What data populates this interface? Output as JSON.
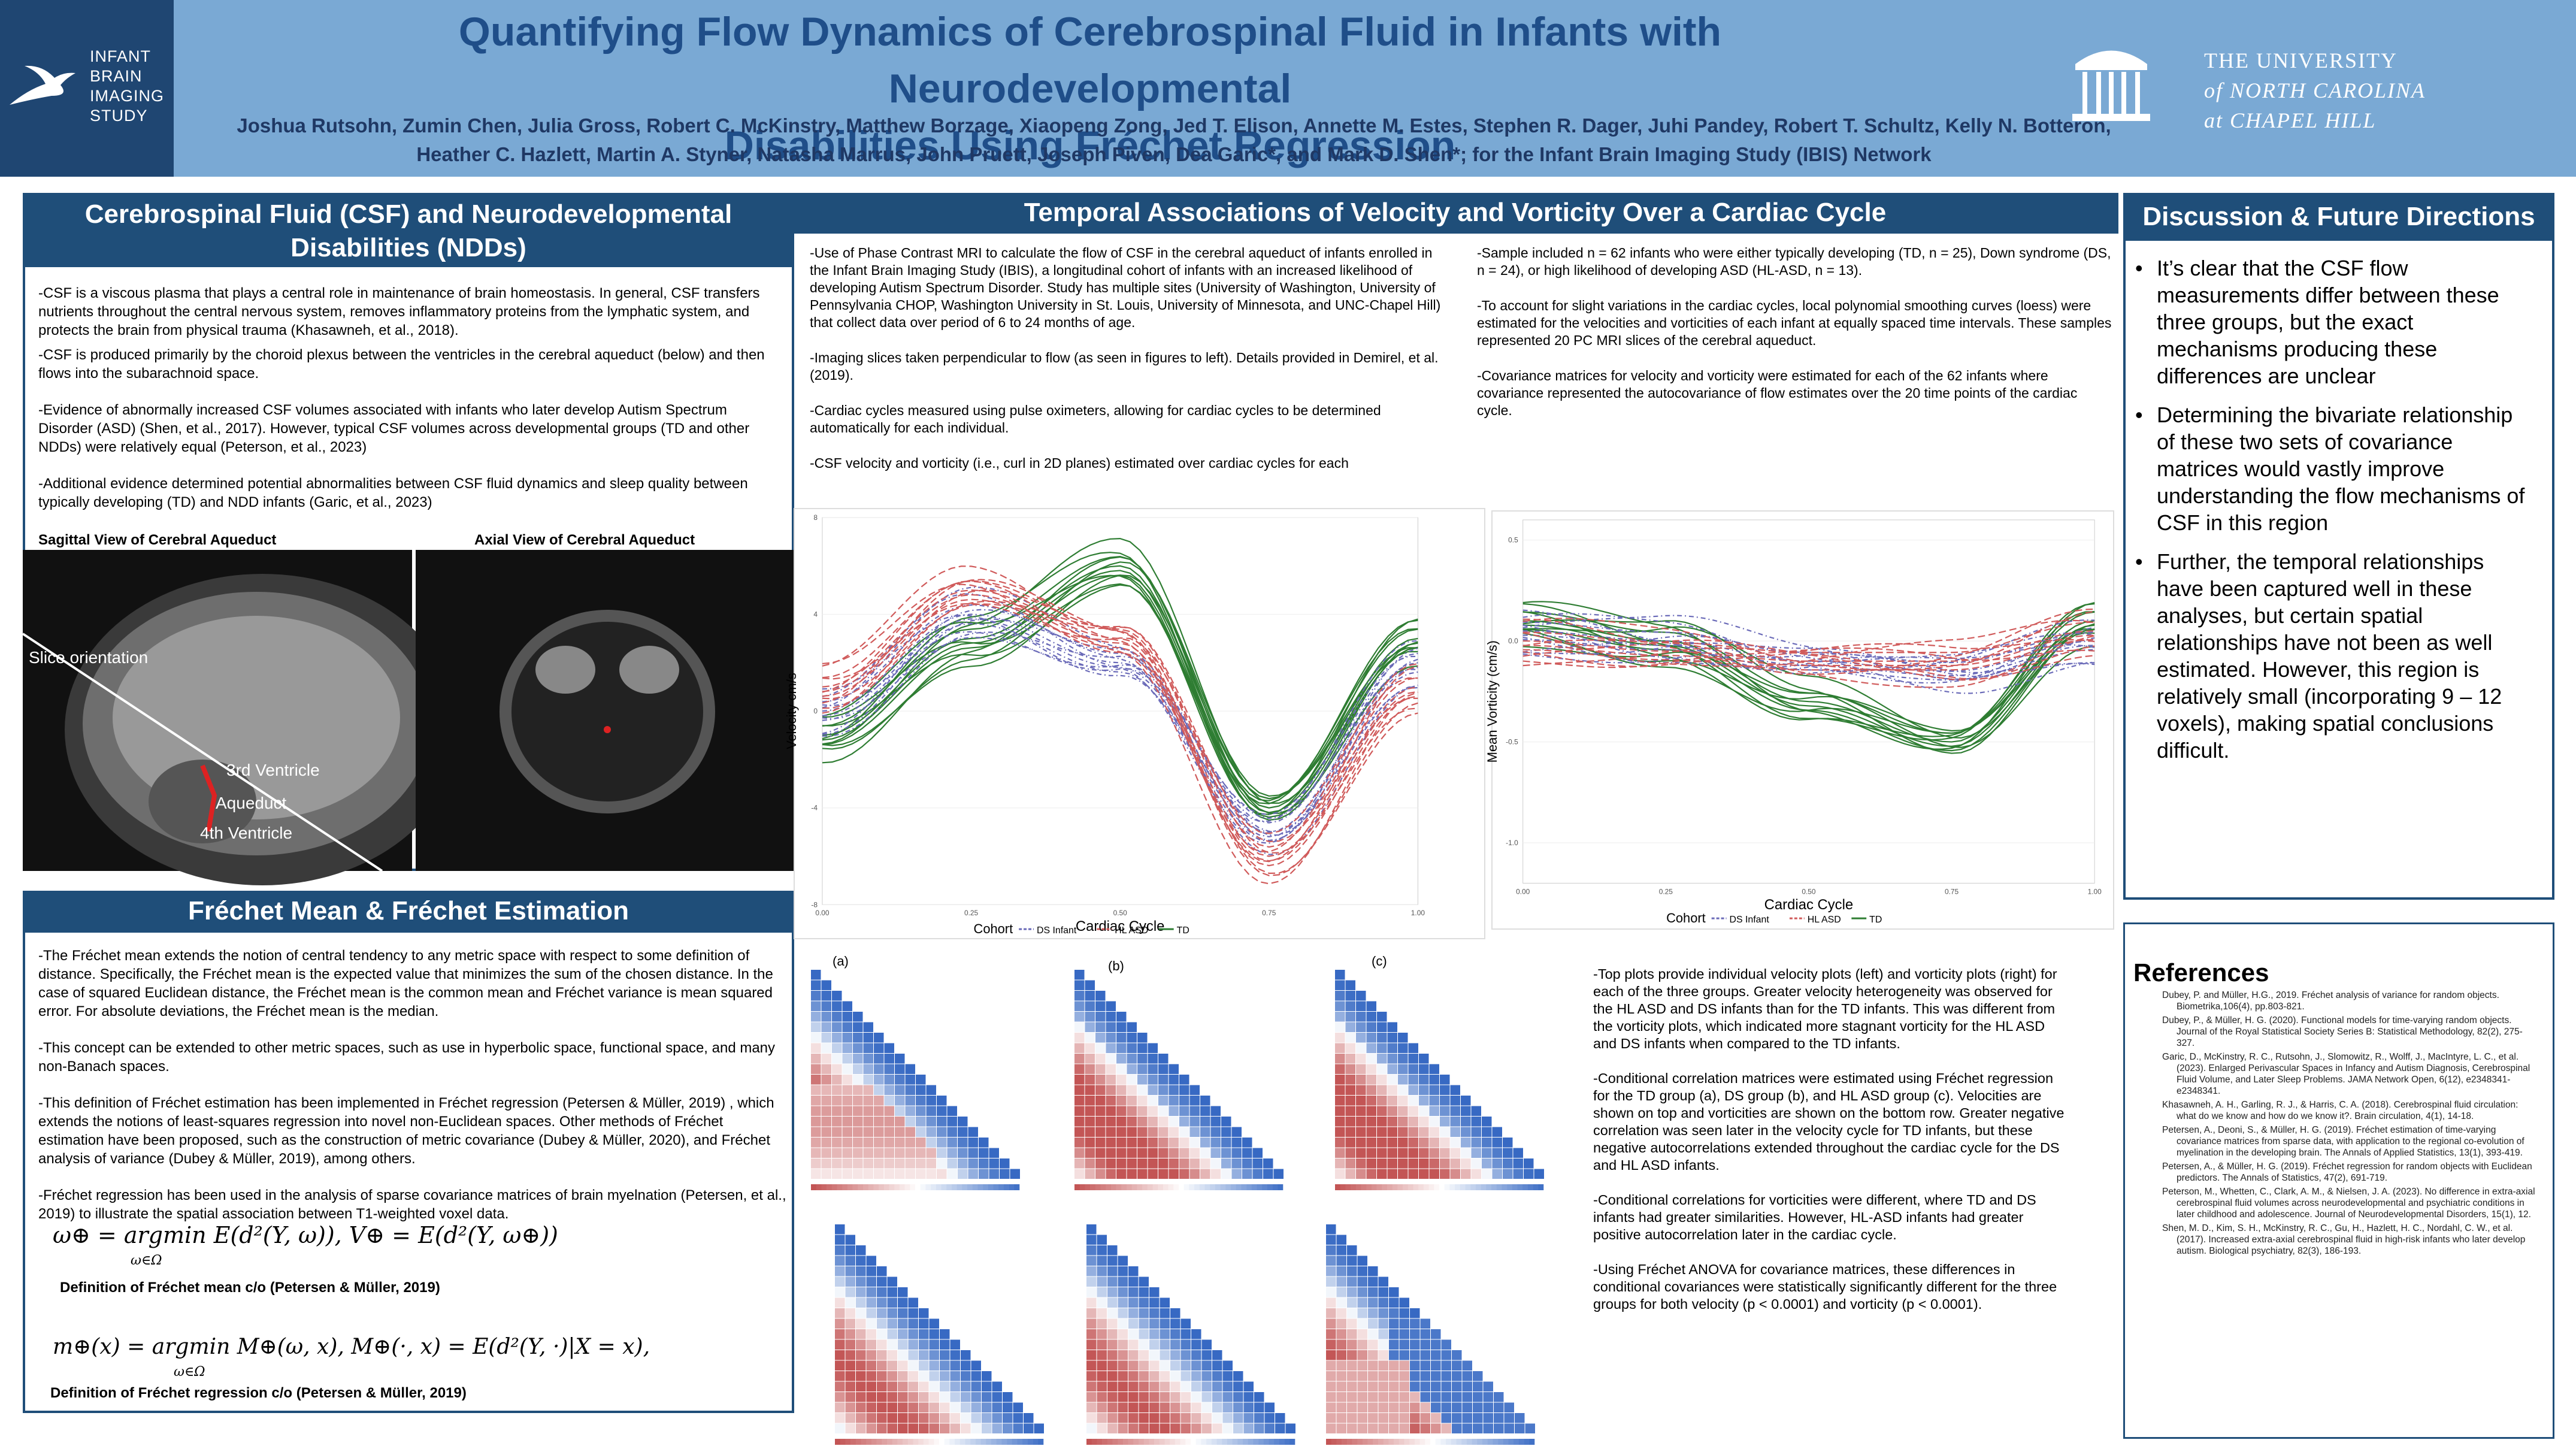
{
  "header": {
    "logo_text": [
      "INFANT",
      "BRAIN",
      "IMAGING",
      "STUDY"
    ],
    "title_line1": "Quantifying Flow Dynamics of Cerebrospinal Fluid in Infants with Neurodevelopmental",
    "title_line2": "Disabilities Using Fréchet Regression",
    "authors_line1": "Joshua Rutsohn, Zumin Chen, Julia Gross, Robert C. McKinstry, Matthew Borzage, Xiaopeng Zong, Jed T. Elison, Annette M. Estes, Stephen R. Dager, Juhi Pandey, Robert T. Schultz, Kelly N. Botteron,",
    "authors_line2": "Heather C. Hazlett, Martin A. Styner, Natasha Marrus, John Pruett, Joseph Piven, Dea Garic*, and Mark D. Shen*; for the Infant Brain Imaging Study (IBIS) Network",
    "unc_line1": "THE UNIVERSITY",
    "unc_line2": "of NORTH CAROLINA",
    "unc_line3": "at CHAPEL HILL"
  },
  "csf": {
    "heading": "Cerebrospinal Fluid (CSF) and Neurodevelopmental Disabilities (NDDs)",
    "p1": "-CSF is a viscous plasma that plays a central role in maintenance of brain homeostasis. In general, CSF transfers nutrients throughout the central nervous system, removes inflammatory proteins from the lymphatic system, and protects the brain from physical trauma (Khasawneh, et al., 2018).",
    "p2": "-CSF is produced primarily by the choroid plexus between the ventricles in the cerebral aqueduct (below) and then flows into the subarachnoid space.",
    "p3": "-Evidence of abnormally increased CSF volumes associated with infants who later develop Autism Spectrum Disorder (ASD) (Shen, et al., 2017). However, typical CSF volumes across developmental groups (TD and other NDDs) were relatively equal (Peterson, et al., 2023)",
    "p4": "-Additional evidence determined potential abnormalities between CSF fluid dynamics and sleep quality between typically developing (TD) and NDD infants (Garic, et al., 2023)",
    "img1_title": "Sagittal View of Cerebral Aqueduct",
    "img2_title": "Axial View of Cerebral Aqueduct",
    "slice_label": "Slice orientation",
    "ventricle3": "3rd Ventricle",
    "aqueduct": "Aqueduct",
    "ventricle4": "4th Ventricle"
  },
  "frechet": {
    "heading": "Fréchet Mean & Fréchet Estimation",
    "p1": "-The Fréchet mean extends the notion of central tendency to any metric space with respect to some definition of distance. Specifically, the Fréchet mean is the expected value that minimizes the sum of the chosen distance. In the case of squared Euclidean distance, the Fréchet mean is the common mean and Fréchet variance is mean squared error. For absolute deviations, the Fréchet mean is the median.",
    "p2": "-This concept can be extended to other metric spaces, such as use in hyperbolic space, functional space, and many non-Banach spaces.",
    "p3": "-This definition of Fréchet estimation has been implemented in Fréchet regression (Petersen & Müller, 2019) , which extends the notions of least-squares regression into novel non-Euclidean spaces. Other methods of Fréchet estimation have been proposed, such as the construction of metric covariance (Dubey & Müller, 2020), and Fréchet analysis of variance (Dubey & Müller, 2019), among others.",
    "p4": "-Fréchet regression has been used in the analysis of sparse covariance matrices of brain myelnation (Petersen, et al., 2019) to illustrate the spatial association between T1-weighted voxel data.",
    "eq1": "ω⊕ = argmin E(d²(Y, ω)),    V⊕ = E(d²(Y, ω⊕))",
    "eq1_sub": "ω∈Ω",
    "cap1": "Definition of Fréchet mean c/o (Petersen & Müller, 2019)",
    "eq2": "m⊕(x) = argmin M⊕(ω, x),    M⊕(·, x) = E(d²(Y, ·)|X = x),",
    "eq2_sub": "ω∈Ω",
    "cap2": "Definition of Fréchet regression c/o (Petersen & Müller, 2019)"
  },
  "temporal": {
    "heading": "Temporal Associations of Velocity and Vorticity Over a Cardiac Cycle",
    "c1p1": "-Use of Phase Contrast MRI to calculate the flow of CSF in the cerebral aqueduct of infants enrolled in the Infant Brain Imaging Study (IBIS), a longitudinal cohort of infants with an increased likelihood of developing Autism Spectrum Disorder. Study has multiple sites (University of Washington, University of Pennsylvania CHOP, Washington University in St. Louis, University of Minnesota, and UNC-Chapel Hill) that collect data over period of 6 to 24 months of age.",
    "c1p2": "-Imaging slices taken perpendicular to flow (as seen in figures to left). Details provided in Demirel, et al. (2019).",
    "c1p3": "-Cardiac cycles measured using pulse oximeters, allowing for cardiac cycles to be determined automatically for each individual.",
    "c1p4": "-CSF velocity and vorticity (i.e., curl in 2D planes) estimated over cardiac cycles for each",
    "c2p1": "-Sample included n = 62 infants who were either typically developing (TD, n = 25), Down syndrome (DS, n = 24), or high likelihood of developing ASD (HL-ASD, n = 13).",
    "c2p2": "-To account for slight variations in the cardiac cycles, local polynomial smoothing curves (loess) were estimated for the velocities and vorticities of each infant at equally spaced time intervals. These samples represented 20 PC MRI slices of the cerebral aqueduct.",
    "c2p3": "-Covariance matrices for velocity and vorticity were estimated for each of the 62 infants where covariance represented the autocovariance of flow estimates over the 20 time points of the cardiac cycle.",
    "cohort_label": "Cohort",
    "legend_ds": "DS Infant",
    "legend_hl": "HL ASD",
    "legend_td": "TD",
    "panel_a": "(a)",
    "panel_b": "(b)",
    "panel_c": "(c)",
    "r1": "-Top plots provide individual velocity plots (left) and vorticity plots (right) for each of the three groups. Greater velocity heterogeneity was observed for the HL ASD and DS infants than for the TD infants. This was different from the vorticity plots, which indicated more stagnant vorticity for the HL ASD and DS infants when compared to the TD infants.",
    "r2": "-Conditional correlation matrices were estimated using Fréchet regression for the TD group (a), DS group (b), and HL ASD group (c). Velocities are shown on top and vorticities are shown on the bottom row. Greater negative correlation was seen later in the velocity cycle for TD infants, but these negative autocorrelations extended throughout the cardiac cycle for the DS and HL ASD infants.",
    "r3": "-Conditional correlations for vorticities were different, where TD and DS infants had greater similarities. However, HL-ASD infants had greater positive autocorrelation later in the cardiac cycle.",
    "r4": "-Using Fréchet ANOVA for covariance matrices, these differences in conditional covariances were statistically significantly different for the three groups for both velocity (p < 0.0001) and vorticity (p < 0.0001)."
  },
  "chart_data": [
    {
      "type": "line",
      "title": "",
      "xlabel": "Cardiac Cycle",
      "ylabel": "Velocity cm/s",
      "xlim": [
        0,
        1
      ],
      "ylim": [
        -8,
        8
      ],
      "xticks": [
        "0.00",
        "0.25",
        "0.50",
        "0.75",
        "1.00"
      ],
      "yticks": [
        "-8",
        "-4",
        "0",
        "4",
        "8"
      ],
      "legend": [
        "DS Infant",
        "HL ASD",
        "TD"
      ],
      "series": [
        {
          "name": "TD",
          "x": [
            0,
            0.25,
            0.5,
            0.75,
            1
          ],
          "values": [
            -1,
            3,
            6,
            -4,
            3
          ]
        },
        {
          "name": "DS Infant",
          "x": [
            0,
            0.25,
            0.5,
            0.75,
            1
          ],
          "values": [
            0,
            4,
            2,
            -5,
            2
          ]
        },
        {
          "name": "HL ASD",
          "x": [
            0,
            0.25,
            0.5,
            0.75,
            1
          ],
          "values": [
            1,
            5,
            3,
            -6,
            1
          ]
        }
      ]
    },
    {
      "type": "line",
      "title": "",
      "xlabel": "Cardiac Cycle",
      "ylabel": "Mean Vorticity (cm/s)",
      "xlim": [
        0,
        1
      ],
      "ylim": [
        -1.2,
        0.6
      ],
      "xticks": [
        "0.00",
        "0.25",
        "0.50",
        "0.75",
        "1.00"
      ],
      "yticks": [
        "-1.0",
        "-0.5",
        "0.0",
        "0.5"
      ],
      "legend": [
        "DS Infant",
        "HL ASD",
        "TD"
      ],
      "series": [
        {
          "name": "TD",
          "x": [
            0,
            0.25,
            0.5,
            0.75,
            1
          ],
          "values": [
            0.1,
            0.0,
            -0.3,
            -0.5,
            0.1
          ]
        },
        {
          "name": "DS Infant",
          "x": [
            0,
            0.25,
            0.5,
            0.75,
            1
          ],
          "values": [
            0.05,
            0.0,
            -0.1,
            -0.15,
            0.0
          ]
        },
        {
          "name": "HL ASD",
          "x": [
            0,
            0.25,
            0.5,
            0.75,
            1
          ],
          "values": [
            0.0,
            -0.05,
            -0.1,
            -0.1,
            0.05
          ]
        }
      ]
    }
  ],
  "discussion": {
    "heading": "Discussion & Future Directions",
    "b1": "It’s clear that the CSF flow measurements differ between these three groups, but the exact mechanisms producing these differences are unclear",
    "b2": "Determining the bivariate relationship of these two sets of covariance matrices would vastly improve understanding the flow mechanisms of CSF in this region",
    "b3": "Further, the temporal relationships have been captured well in these analyses, but certain spatial relationships have not been as well estimated. However, this region is relatively small (incorporating 9 – 12 voxels), making spatial conclusions difficult."
  },
  "references": {
    "heading": "References",
    "items": [
      "Dubey, P. and Müller, H.G., 2019. Fréchet analysis of variance for random objects. Biometrika,106(4), pp.803-821.",
      "Dubey, P., & Müller, H. G. (2020). Functional models for time-varying random objects. Journal of the Royal Statistical Society Series B: Statistical Methodology, 82(2), 275-327.",
      "Garic, D., McKinstry, R. C., Rutsohn, J., Slomowitz, R., Wolff, J., MacIntyre, L. C., et al. (2023). Enlarged Perivascular Spaces in Infancy and Autism Diagnosis, Cerebrospinal Fluid Volume, and Later Sleep Problems. JAMA Network Open, 6(12), e2348341-e2348341.",
      "Khasawneh, A. H., Garling, R. J., & Harris, C. A. (2018). Cerebrospinal fluid circulation: what do we know and how do we know it?. Brain circulation, 4(1), 14-18.",
      "Petersen, A., Deoni, S., & Müller, H. G. (2019). Fréchet estimation of time-varying covariance matrices from sparse data, with application to the regional co-evolution of myelination in the developing brain. The Annals of Applied Statistics, 13(1), 393-419.",
      "Petersen, A., & Müller, H. G. (2019). Fréchet regression for random objects with Euclidean predictors. The Annals of Statistics, 47(2), 691-719.",
      "Peterson, M., Whetten, C., Clark, A. M., & Nielsen, J. A. (2023). No difference in extra-axial cerebrospinal fluid volumes across neurodevelopmental and psychiatric conditions in later childhood and adolescence. Journal of Neurodevelopmental Disorders, 15(1), 12.",
      "Shen, M. D., Kim, S. H., McKinstry, R. C., Gu, H., Hazlett, H. C., Nordahl, C. W., et al. (2017). Increased extra-axial cerebrospinal fluid in high-risk infants who later develop autism. Biological psychiatry, 82(3), 186-193."
    ]
  },
  "colors": {
    "header_bg": "#7aa9d4",
    "header_title": "#1f4e89",
    "panel": "#1f4e79",
    "td": "#2e7d32",
    "ds": "#6a6ab8",
    "hl": "#d05a5a"
  }
}
